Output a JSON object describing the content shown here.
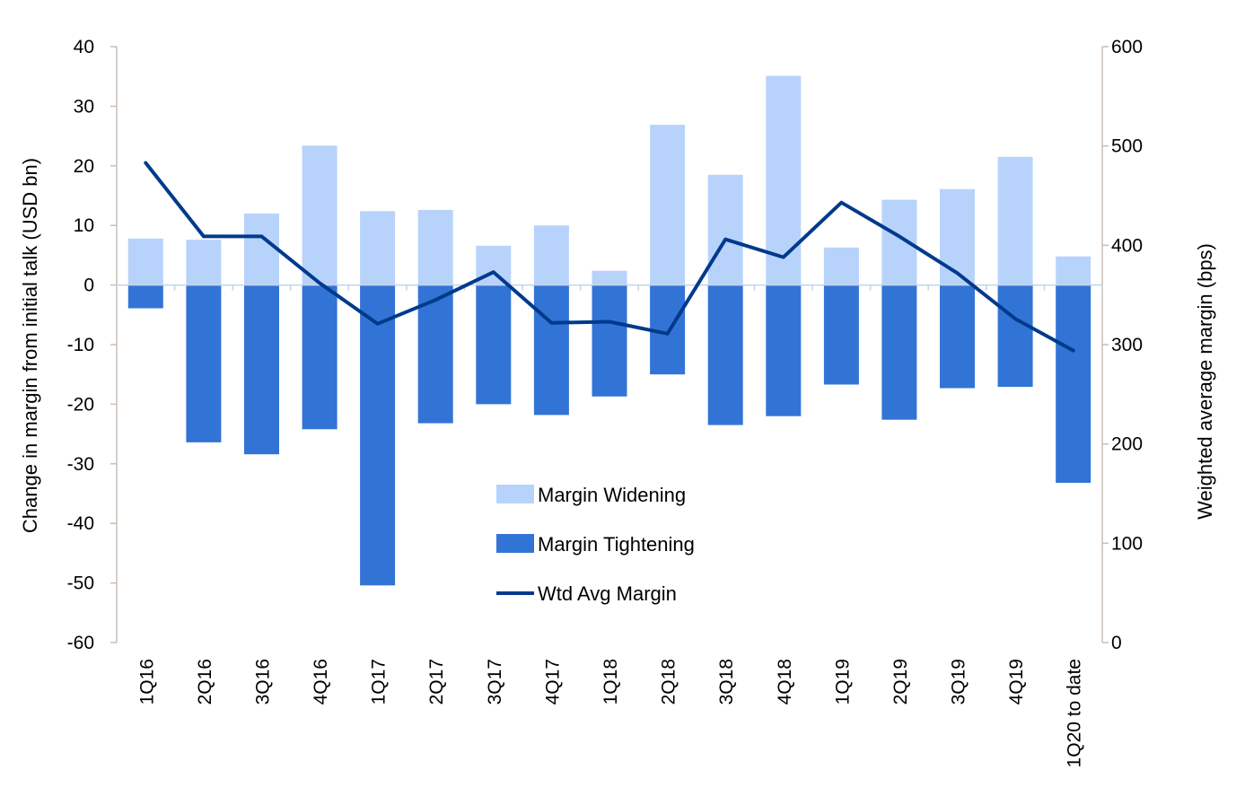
{
  "chart_data": {
    "type": "bar",
    "categories": [
      "1Q16",
      "2Q16",
      "3Q16",
      "4Q16",
      "1Q17",
      "2Q17",
      "3Q17",
      "4Q17",
      "1Q18",
      "2Q18",
      "3Q18",
      "4Q18",
      "1Q19",
      "2Q19",
      "3Q19",
      "4Q19",
      "1Q20 to date"
    ],
    "series": [
      {
        "name": "Margin Widening",
        "type": "bar",
        "axis": "left",
        "color": "#b8d3fb",
        "values": [
          7.8,
          7.6,
          12.0,
          23.4,
          12.4,
          12.6,
          6.6,
          10.0,
          2.4,
          26.9,
          18.5,
          35.1,
          6.3,
          14.3,
          16.1,
          21.5,
          4.8
        ]
      },
      {
        "name": "Margin Tightening",
        "type": "bar",
        "axis": "left",
        "color": "#3274d5",
        "values": [
          -3.9,
          -26.4,
          -28.4,
          -24.2,
          -50.4,
          -23.2,
          -20.0,
          -21.8,
          -18.7,
          -15.0,
          -23.5,
          -22.0,
          -16.7,
          -22.6,
          -17.3,
          -17.1,
          -33.2
        ]
      },
      {
        "name": "Wtd Avg Margin",
        "type": "line",
        "axis": "right",
        "color": "#003a8c",
        "values": [
          483,
          409,
          409,
          362,
          321,
          345,
          373,
          322,
          323,
          311,
          406,
          388,
          443,
          409,
          372,
          326,
          294
        ]
      }
    ],
    "ylabel": "Change in margin from initial talk (USD bn)",
    "y2label": "Weighted average margin (bps)",
    "ylim": [
      -60,
      40
    ],
    "y2lim": [
      0,
      600
    ],
    "yticks": [
      "40",
      "30",
      "20",
      "10",
      "0",
      "-10",
      "-20",
      "-30",
      "-40",
      "-50",
      "-60"
    ],
    "y2ticks": [
      "600",
      "500",
      "400",
      "300",
      "200",
      "100",
      "0"
    ],
    "grid": false,
    "legend": {
      "placement": "center",
      "items": [
        "Margin Widening",
        "Margin Tightening",
        "Wtd Avg Margin"
      ]
    }
  }
}
